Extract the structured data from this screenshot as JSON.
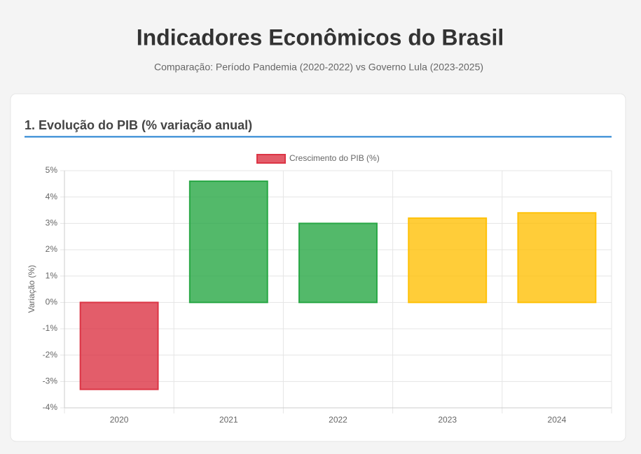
{
  "chart_data": {
    "type": "bar",
    "title": "Indicadores Econômicos do Brasil",
    "subtitle": "Comparação: Período Pandemia (2020-2022) vs Governo Lula (2023-2025)",
    "section_title": "1. Evolução do PIB (% variação anual)",
    "y_label": "Variação (%)",
    "categories": [
      "2020",
      "2021",
      "2022",
      "2023",
      "2024"
    ],
    "series": [
      {
        "name": "Crescimento do PIB (%)",
        "color": "#dc3545",
        "colors": [
          "#dc3545",
          "#28a745",
          "#28a745",
          "#ffc107",
          "#ffc107"
        ],
        "values": [
          -3.3,
          4.6,
          3.0,
          3.2,
          3.4
        ]
      }
    ],
    "ylim": [
      -4,
      5
    ],
    "yticks": [
      {
        "value": -4,
        "label": "-4%"
      },
      {
        "value": -3,
        "label": "-3%"
      },
      {
        "value": -2,
        "label": "-2%"
      },
      {
        "value": -1,
        "label": "-1%"
      },
      {
        "value": 0,
        "label": "0%"
      },
      {
        "value": 1,
        "label": "1%"
      },
      {
        "value": 2,
        "label": "2%"
      },
      {
        "value": 3,
        "label": "3%"
      },
      {
        "value": 4,
        "label": "4%"
      },
      {
        "value": 5,
        "label": "5%"
      }
    ],
    "grid": true,
    "legend": "top"
  }
}
